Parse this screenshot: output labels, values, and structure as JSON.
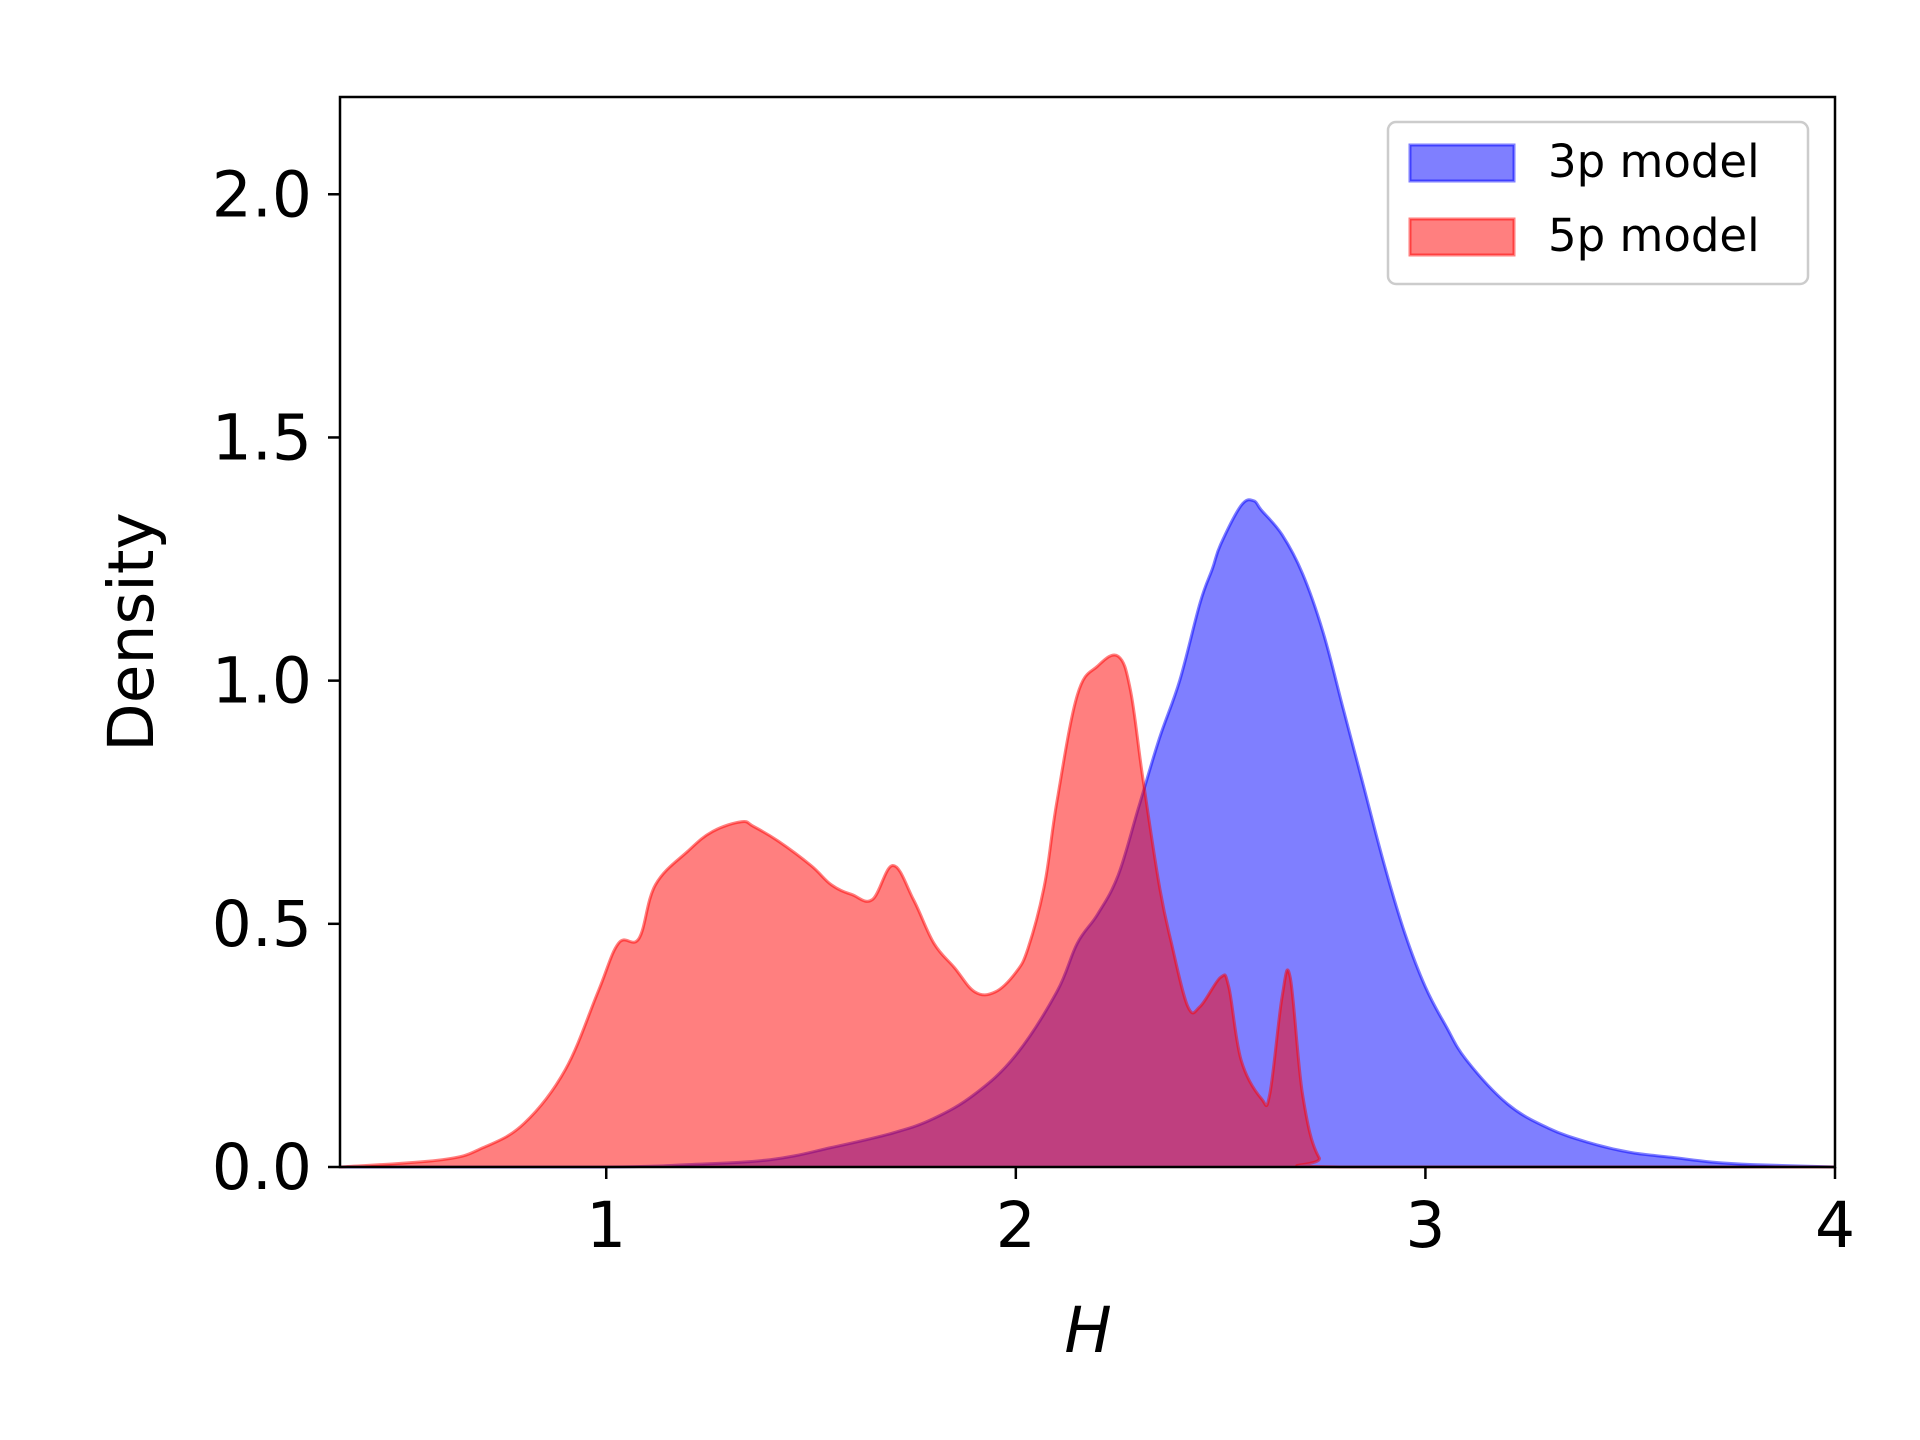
{
  "chart_data": {
    "type": "area",
    "title": "",
    "xlabel": "H",
    "ylabel": "Density",
    "xlim": [
      0.35,
      4.0
    ],
    "ylim": [
      0.0,
      2.2
    ],
    "xticks": [
      1,
      2,
      3,
      4
    ],
    "xtick_labels": [
      "1",
      "2",
      "3",
      "4"
    ],
    "yticks": [
      0.0,
      0.5,
      1.0,
      1.5,
      2.0
    ],
    "ytick_labels": [
      "0.0",
      "0.5",
      "1.0",
      "1.5",
      "2.0"
    ],
    "grid": false,
    "legend_position": "top-right",
    "series": [
      {
        "name": "3p model",
        "color": "#0000ff",
        "x": [
          0.35,
          1.0,
          1.2,
          1.4,
          1.55,
          1.7,
          1.8,
          1.9,
          2.0,
          2.1,
          2.15,
          2.2,
          2.25,
          2.3,
          2.35,
          2.4,
          2.45,
          2.48,
          2.5,
          2.55,
          2.58,
          2.6,
          2.65,
          2.7,
          2.75,
          2.8,
          2.85,
          2.9,
          2.95,
          3.0,
          3.05,
          3.1,
          3.2,
          3.3,
          3.4,
          3.5,
          3.6,
          3.7,
          3.8,
          4.0
        ],
        "y": [
          0.0,
          0.0,
          0.005,
          0.015,
          0.04,
          0.07,
          0.1,
          0.15,
          0.23,
          0.36,
          0.46,
          0.52,
          0.6,
          0.74,
          0.88,
          1.0,
          1.16,
          1.23,
          1.28,
          1.36,
          1.37,
          1.35,
          1.3,
          1.22,
          1.1,
          0.94,
          0.78,
          0.62,
          0.48,
          0.37,
          0.29,
          0.22,
          0.13,
          0.08,
          0.05,
          0.03,
          0.02,
          0.01,
          0.005,
          0.0
        ]
      },
      {
        "name": "5p model",
        "color": "#ff0000",
        "x": [
          0.35,
          0.6,
          0.7,
          0.8,
          0.9,
          0.98,
          1.03,
          1.08,
          1.12,
          1.2,
          1.26,
          1.33,
          1.36,
          1.42,
          1.5,
          1.55,
          1.6,
          1.65,
          1.7,
          1.75,
          1.8,
          1.85,
          1.9,
          1.95,
          2.0,
          2.03,
          2.07,
          2.1,
          2.15,
          2.2,
          2.25,
          2.28,
          2.31,
          2.35,
          2.38,
          2.42,
          2.45,
          2.5,
          2.52,
          2.55,
          2.6,
          2.62,
          2.65,
          2.67,
          2.7,
          2.74,
          2.8,
          4.0
        ],
        "y": [
          0.0,
          0.015,
          0.04,
          0.09,
          0.2,
          0.36,
          0.46,
          0.47,
          0.58,
          0.65,
          0.69,
          0.71,
          0.7,
          0.67,
          0.62,
          0.58,
          0.56,
          0.55,
          0.62,
          0.55,
          0.46,
          0.41,
          0.36,
          0.36,
          0.4,
          0.45,
          0.58,
          0.75,
          0.97,
          1.03,
          1.05,
          0.98,
          0.8,
          0.58,
          0.46,
          0.33,
          0.33,
          0.39,
          0.37,
          0.22,
          0.14,
          0.15,
          0.35,
          0.39,
          0.15,
          0.02,
          0.0,
          0.0
        ]
      }
    ]
  }
}
